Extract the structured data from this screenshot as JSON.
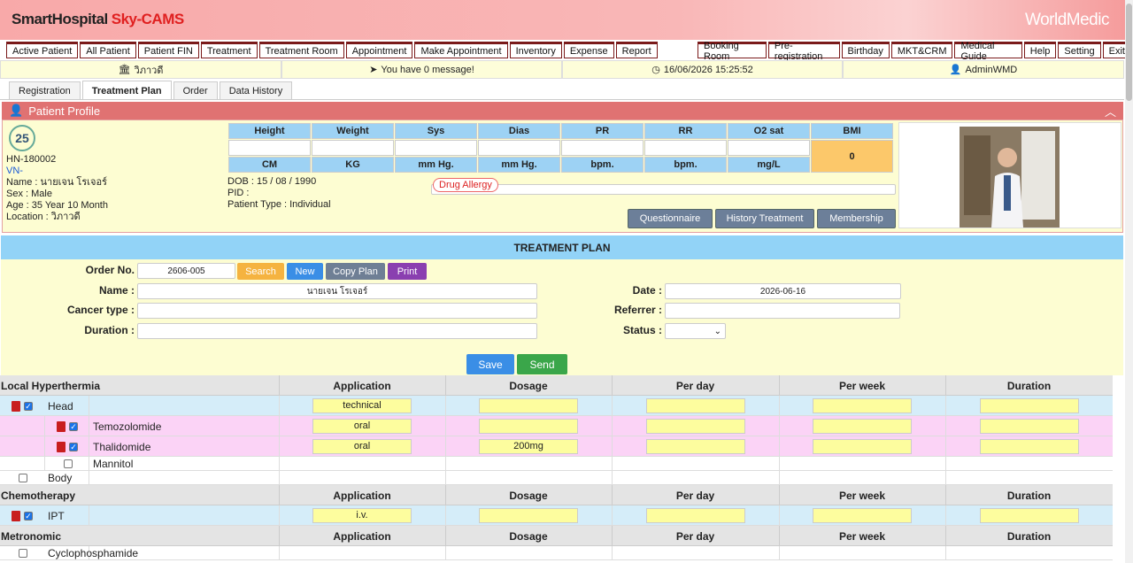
{
  "header": {
    "brand": "SmartHospital",
    "brand_sub": "Sky-CAMS",
    "logo": "WorldMedic"
  },
  "nav_left": [
    "Active Patient",
    "All Patient",
    "Patient FIN",
    "Treatment",
    "Treatment Room",
    "Appointment",
    "Make Appointment",
    "Inventory",
    "Expense",
    "Report"
  ],
  "nav_right": [
    "Booking Room",
    "Pre-registration",
    "Birthday",
    "MKT&CRM",
    "Medical Guide",
    "Help",
    "Setting",
    "Exit"
  ],
  "status": {
    "location": "วิภาวดี",
    "message": "You have 0 message!",
    "datetime": "16/06/2026 15:25:52",
    "user": "AdminWMD"
  },
  "tabs": [
    "Registration",
    "Treatment Plan",
    "Order",
    "Data History"
  ],
  "profile": {
    "title": "Patient Profile",
    "hn": "HN-180002",
    "vn": "VN-",
    "name": "Name : นายเจน โรเจอร์",
    "sex": "Sex : Male",
    "age": "Age : 35 Year 10 Month",
    "location": "Location : วิภาวดี",
    "dob": "DOB : 15 / 08 / 1990",
    "pid": "PID :",
    "patient_type": "Patient Type : Individual",
    "vitals": [
      "Height",
      "Weight",
      "Sys",
      "Dias",
      "PR",
      "RR",
      "O2 sat",
      "BMI"
    ],
    "units": [
      "CM",
      "KG",
      "mm Hg.",
      "mm Hg.",
      "bpm.",
      "bpm.",
      "mg/L"
    ],
    "bmi": "0",
    "drug_allergy": "Drug Allergy",
    "buttons": [
      "Questionnaire",
      "History Treatment",
      "Membership"
    ]
  },
  "treatment_plan": {
    "title": "TREATMENT PLAN",
    "order_no": {
      "label": "Order No.",
      "value": "2606-005"
    },
    "buttons": [
      "Search",
      "New",
      "Copy Plan",
      "Print"
    ],
    "name": {
      "label": "Name :",
      "value": "นายเจน โรเจอร์"
    },
    "cancer_type": {
      "label": "Cancer type :"
    },
    "duration": {
      "label": "Duration :"
    },
    "date": {
      "label": "Date :",
      "value": "2026-06-16"
    },
    "referrer": {
      "label": "Referrer :"
    },
    "status": {
      "label": "Status :"
    },
    "actions": [
      "Save",
      "Send"
    ]
  },
  "sections": [
    {
      "title": "Local Hyperthermia",
      "columns": [
        "Application",
        "Dosage",
        "Per day",
        "Per week",
        "Duration"
      ],
      "rows": [
        {
          "name": "Head",
          "level": 0,
          "checked": true,
          "color": "#d5edf9",
          "inputs": [
            "technical",
            null,
            null,
            null,
            null
          ]
        },
        {
          "name": "Temozolomide",
          "level": 1,
          "checked": true,
          "color": "#fbd3f6",
          "inputs": [
            "oral",
            null,
            null,
            null,
            null
          ]
        },
        {
          "name": "Thalidomide",
          "level": 1,
          "checked": true,
          "color": "#fbd3f6",
          "inputs": [
            "oral",
            "200mg",
            null,
            null,
            null
          ]
        },
        {
          "name": "Mannitol",
          "level": 1,
          "checked": false
        },
        {
          "name": "Body",
          "level": 0,
          "checked": false
        }
      ]
    },
    {
      "title": "Chemotherapy",
      "columns": [
        "Application",
        "Dosage",
        "Per day",
        "Per week",
        "Duration"
      ],
      "rows": [
        {
          "name": "IPT",
          "level": 0,
          "checked": true,
          "color": "#d5edf9",
          "inputs": [
            "i.v.",
            null,
            null,
            null,
            null
          ]
        }
      ]
    },
    {
      "title": "Metronomic",
      "columns": [
        "Application",
        "Dosage",
        "Per day",
        "Per week",
        "Duration"
      ],
      "rows": [
        {
          "name": "Cyclophosphamide",
          "level": 0,
          "checked": false
        }
      ]
    }
  ]
}
